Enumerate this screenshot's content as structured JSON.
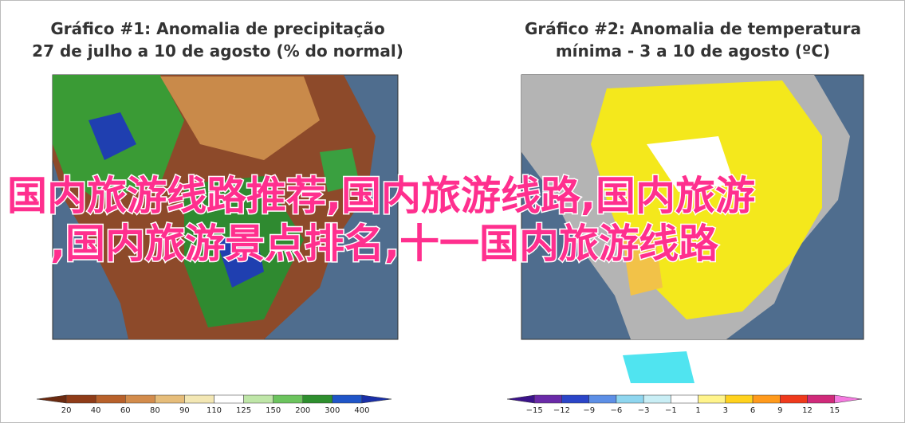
{
  "panels": [
    {
      "title_line1": "Gráfico #1: Anomalia de precipitação",
      "title_line2": "27 de julho a 10 de agosto (% do normal)",
      "colorbar_labels": [
        "20",
        "40",
        "60",
        "80",
        "90",
        "110",
        "125",
        "150",
        "200",
        "300",
        "400"
      ]
    },
    {
      "title_line1": "Gráfico #2: Anomalia de temperatura",
      "title_line2": "mínima - 3 a 10 de agosto (ºC)",
      "colorbar_labels": [
        "−15",
        "−12",
        "−9",
        "−6",
        "−3",
        "−1",
        "1",
        "3",
        "6",
        "9",
        "12",
        "15"
      ]
    }
  ],
  "overlay": {
    "line1": "国内旅游线路推荐,国内旅游线路,国内旅游",
    "line2": ",国内旅游景点排名,十一国内旅游线路"
  }
}
